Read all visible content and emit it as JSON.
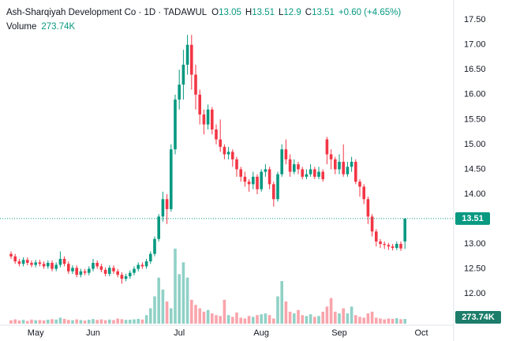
{
  "chart_data": {
    "type": "candlestick",
    "title": "Ash-Sharqiyah Development Co · 1D · TADAWUL",
    "ohlc_labels": [
      "O",
      "H",
      "L",
      "C"
    ],
    "change_label": "+0.60 (+4.65%)",
    "volume_name": "Volume",
    "last_volume_label": "273.74K",
    "up_color": "#089981",
    "down_color": "#f23645",
    "grid": false,
    "ylim": [
      11.32,
      17.9
    ],
    "yticks": [
      {
        "value": 12,
        "label": "12.00"
      },
      {
        "value": 12.5,
        "label": "12.50"
      },
      {
        "value": 13,
        "label": "13.00"
      },
      {
        "value": 13.5,
        "label": "13.50"
      },
      {
        "value": 14,
        "label": "14.00"
      },
      {
        "value": 14.5,
        "label": "14.50"
      },
      {
        "value": 15,
        "label": "15.00"
      },
      {
        "value": 15.5,
        "label": "15.50"
      },
      {
        "value": 16,
        "label": "16.00"
      },
      {
        "value": 16.5,
        "label": "16.50"
      },
      {
        "value": 17,
        "label": "17.00"
      },
      {
        "value": 17.5,
        "label": "17.50"
      }
    ],
    "categories": [
      null,
      null,
      null,
      null,
      null,
      null,
      "May",
      null,
      null,
      null,
      null,
      null,
      null,
      null,
      null,
      null,
      null,
      null,
      null,
      null,
      "Jun",
      null,
      null,
      null,
      null,
      null,
      null,
      null,
      null,
      null,
      null,
      null,
      null,
      null,
      null,
      null,
      null,
      null,
      null,
      null,
      null,
      "Jul",
      null,
      null,
      null,
      null,
      null,
      null,
      null,
      null,
      null,
      null,
      null,
      null,
      null,
      null,
      null,
      null,
      null,
      null,
      null,
      "Aug",
      null,
      null,
      null,
      null,
      null,
      null,
      null,
      null,
      null,
      null,
      null,
      null,
      null,
      null,
      null,
      null,
      null,
      null,
      "Sep",
      null,
      null,
      null,
      null,
      null,
      null,
      null,
      null,
      null,
      null,
      null,
      null,
      null,
      null,
      null,
      null,
      null,
      null,
      null,
      "Oct"
    ],
    "open": [
      12.8,
      12.75,
      12.65,
      12.6,
      12.68,
      12.62,
      12.58,
      12.63,
      12.6,
      12.55,
      12.62,
      12.5,
      12.58,
      12.7,
      12.6,
      12.45,
      12.52,
      12.38,
      12.45,
      12.42,
      12.5,
      12.62,
      12.55,
      12.48,
      12.4,
      12.52,
      12.45,
      12.38,
      12.3,
      12.35,
      12.42,
      12.5,
      12.58,
      12.55,
      12.65,
      12.8,
      13.1,
      13.55,
      13.9,
      13.7,
      14.9,
      15.9,
      16.2,
      16.6,
      17.0,
      16.4,
      16.0,
      15.6,
      15.4,
      15.7,
      15.3,
      15.1,
      14.95,
      14.8,
      14.85,
      14.7,
      14.5,
      14.35,
      14.25,
      14.2,
      14.35,
      14.1,
      14.45,
      14.5,
      14.2,
      13.9,
      14.4,
      14.9,
      14.7,
      14.45,
      14.6,
      14.5,
      14.35,
      14.4,
      14.5,
      14.35,
      14.45,
      15.1,
      14.8,
      14.7,
      14.5,
      14.65,
      14.4,
      14.55,
      14.65,
      14.25,
      14.15,
      13.9,
      13.55,
      13.25,
      13.05,
      13.0,
      12.98,
      12.95,
      12.92,
      13.0,
      13.05,
      null,
      null,
      null,
      null
    ],
    "high": [
      12.85,
      12.8,
      12.7,
      12.73,
      12.73,
      12.67,
      12.68,
      12.68,
      12.65,
      12.67,
      12.67,
      12.63,
      12.85,
      12.75,
      12.65,
      12.57,
      12.57,
      12.5,
      12.5,
      12.55,
      12.7,
      12.67,
      12.6,
      12.53,
      12.57,
      12.57,
      12.5,
      12.43,
      12.4,
      12.47,
      12.55,
      12.63,
      12.63,
      12.7,
      12.85,
      13.15,
      13.6,
      14.05,
      14.0,
      15.0,
      16.0,
      16.5,
      16.9,
      17.2,
      17.2,
      16.6,
      16.1,
      15.7,
      15.8,
      15.75,
      15.4,
      15.5,
      15.0,
      14.95,
      14.9,
      14.75,
      14.55,
      14.45,
      14.3,
      14.45,
      14.4,
      14.5,
      14.6,
      14.55,
      14.25,
      14.45,
      15.0,
      15.1,
      14.8,
      14.7,
      14.65,
      14.55,
      14.5,
      14.6,
      14.55,
      14.55,
      14.5,
      15.15,
      14.9,
      14.75,
      14.8,
      15.0,
      14.65,
      14.75,
      14.7,
      14.3,
      14.2,
      13.95,
      13.6,
      13.3,
      13.1,
      13.05,
      13.02,
      13.0,
      13.05,
      13.05,
      13.51,
      null,
      null,
      null,
      null
    ],
    "low": [
      12.7,
      12.6,
      12.55,
      12.55,
      12.57,
      12.53,
      12.53,
      12.55,
      12.5,
      12.5,
      12.45,
      12.45,
      12.53,
      12.55,
      12.4,
      12.4,
      12.33,
      12.33,
      12.37,
      12.37,
      12.45,
      12.5,
      12.43,
      12.35,
      12.35,
      12.4,
      12.33,
      12.2,
      12.25,
      12.3,
      12.37,
      12.45,
      12.5,
      12.5,
      12.6,
      12.75,
      13.05,
      13.45,
      13.4,
      13.65,
      14.8,
      15.7,
      15.9,
      16.4,
      16.1,
      15.7,
      15.4,
      15.2,
      15.3,
      15.2,
      15.0,
      14.85,
      14.7,
      14.7,
      14.55,
      14.35,
      14.25,
      14.15,
      14.05,
      14.1,
      14.0,
      14.05,
      14.35,
      14.1,
      13.75,
      13.85,
      14.35,
      14.6,
      14.35,
      14.4,
      14.4,
      14.3,
      14.3,
      14.35,
      14.3,
      14.3,
      14.25,
      14.6,
      14.5,
      14.4,
      14.4,
      14.35,
      14.35,
      14.45,
      14.2,
      13.95,
      13.8,
      13.4,
      13.15,
      12.95,
      12.92,
      12.9,
      12.88,
      12.87,
      12.88,
      12.86,
      12.9,
      null,
      null,
      null,
      null
    ],
    "close": [
      12.75,
      12.65,
      12.6,
      12.68,
      12.62,
      12.58,
      12.63,
      12.6,
      12.55,
      12.62,
      12.5,
      12.58,
      12.7,
      12.6,
      12.45,
      12.52,
      12.38,
      12.45,
      12.42,
      12.5,
      12.62,
      12.55,
      12.48,
      12.4,
      12.52,
      12.45,
      12.38,
      12.3,
      12.35,
      12.42,
      12.5,
      12.58,
      12.55,
      12.65,
      12.8,
      13.1,
      13.55,
      13.9,
      13.7,
      14.9,
      15.9,
      16.2,
      16.6,
      17.0,
      16.4,
      16.0,
      15.6,
      15.4,
      15.7,
      15.3,
      15.1,
      14.95,
      14.8,
      14.85,
      14.7,
      14.5,
      14.35,
      14.25,
      14.2,
      14.35,
      14.1,
      14.45,
      14.5,
      14.2,
      13.9,
      14.4,
      14.9,
      14.7,
      14.45,
      14.6,
      14.5,
      14.35,
      14.4,
      14.5,
      14.35,
      14.45,
      14.3,
      14.8,
      14.7,
      14.5,
      14.65,
      14.4,
      14.55,
      14.65,
      14.25,
      14.15,
      13.9,
      13.55,
      13.25,
      13.05,
      13.0,
      12.98,
      12.95,
      12.92,
      13.0,
      12.91,
      13.51,
      null,
      null,
      null,
      null
    ],
    "volume": [
      200000,
      250000,
      180000,
      220000,
      160000,
      240000,
      200000,
      210000,
      190000,
      230000,
      260000,
      240000,
      350000,
      280000,
      220000,
      200000,
      250000,
      210000,
      180000,
      230000,
      270000,
      220000,
      250000,
      200000,
      240000,
      210000,
      300000,
      260000,
      220000,
      230000,
      250000,
      280000,
      240000,
      500000,
      900000,
      1600000,
      2700000,
      2000000,
      1300000,
      900000,
      4400000,
      2900000,
      3600000,
      2700000,
      1400000,
      1100000,
      900000,
      700000,
      800000,
      600000,
      500000,
      450000,
      1400000,
      500000,
      400000,
      650000,
      350000,
      300000,
      450000,
      400000,
      500000,
      550000,
      600000,
      500000,
      300000,
      1600000,
      2500000,
      1300000,
      700000,
      600000,
      800000,
      500000,
      450000,
      550000,
      400000,
      450000,
      700000,
      1000000,
      1500000,
      700000,
      600000,
      900000,
      600000,
      1000000,
      500000,
      400000,
      350000,
      600000,
      700000,
      350000,
      300000,
      250000,
      300000,
      280000,
      320000,
      260000,
      273740,
      null,
      null,
      null,
      null
    ]
  }
}
